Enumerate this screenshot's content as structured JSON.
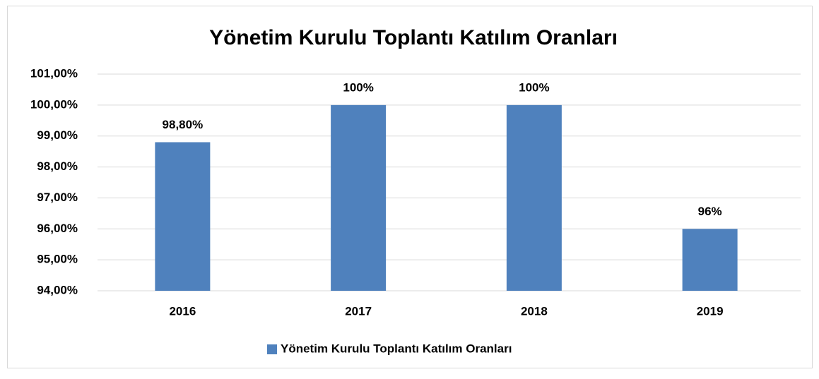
{
  "chart_data": {
    "type": "bar",
    "title": "Yönetim Kurulu Toplantı Katılım Oranları",
    "categories": [
      "2016",
      "2017",
      "2018",
      "2019"
    ],
    "series": [
      {
        "name": "Yönetim Kurulu Toplantı Katılım Oranları",
        "color": "#4f81bd",
        "values": [
          98.8,
          100,
          100,
          96
        ],
        "value_labels": [
          "98,80%",
          "100%",
          "100%",
          "96%"
        ]
      }
    ],
    "ylim": [
      94,
      101
    ],
    "yticks": [
      {
        "value": 94,
        "label": "94,00%"
      },
      {
        "value": 95,
        "label": "95,00%"
      },
      {
        "value": 96,
        "label": "96,00%"
      },
      {
        "value": 97,
        "label": "97,00%"
      },
      {
        "value": 98,
        "label": "98,00%"
      },
      {
        "value": 99,
        "label": "99,00%"
      },
      {
        "value": 100,
        "label": "100,00%"
      },
      {
        "value": 101,
        "label": "101,00%"
      }
    ],
    "grid": true,
    "legend": "bottom"
  }
}
